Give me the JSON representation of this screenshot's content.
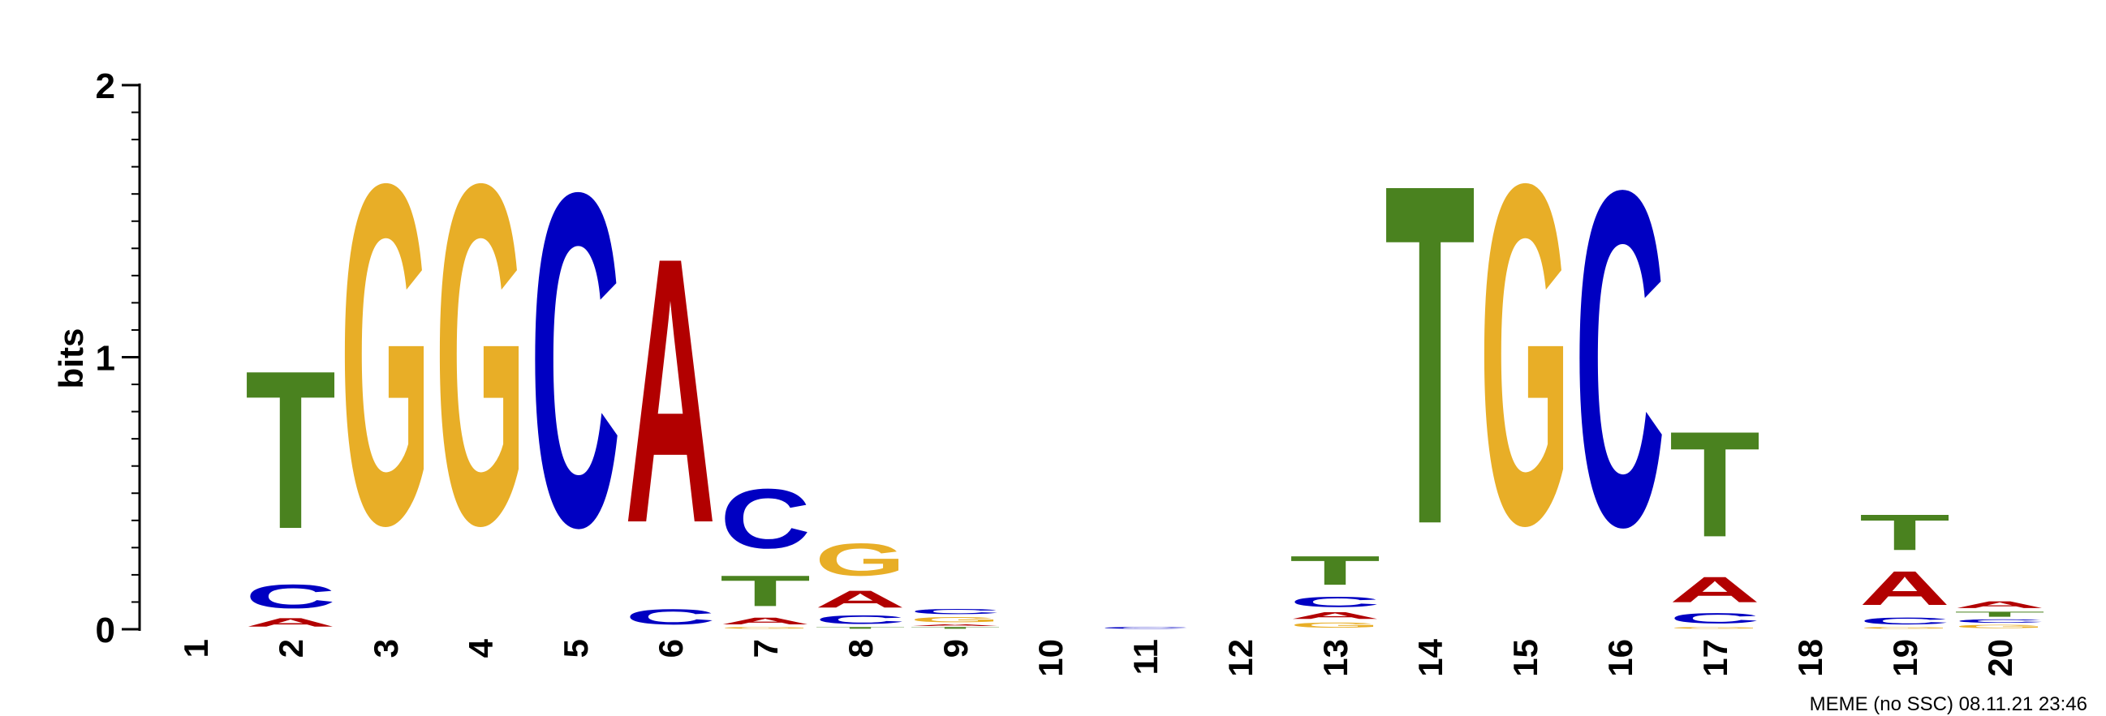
{
  "chart_data": {
    "type": "sequence-logo",
    "ylabel": "bits",
    "ylim": [
      0,
      2
    ],
    "yticks": [
      "0",
      "1",
      "2"
    ],
    "positions": [
      "1",
      "2",
      "3",
      "4",
      "5",
      "6",
      "7",
      "8",
      "9",
      "10",
      "11",
      "12",
      "13",
      "14",
      "15",
      "16",
      "17",
      "18",
      "19",
      "20"
    ],
    "letter_colors": {
      "A": "#b20000",
      "C": "#0000c2",
      "G": "#e8ae27",
      "T": "#4a821f"
    },
    "stacks": [
      [],
      [
        {
          "letter": "A",
          "height": 0.05
        },
        {
          "letter": "C",
          "height": 0.14
        },
        {
          "letter": "T",
          "height": 0.93
        }
      ],
      [
        {
          "letter": "G",
          "height": 2.0
        }
      ],
      [
        {
          "letter": "G",
          "height": 2.0
        }
      ],
      [
        {
          "letter": "C",
          "height": 1.96
        }
      ],
      [
        {
          "letter": "C",
          "height": 0.09
        },
        {
          "letter": "A",
          "height": 1.56
        }
      ],
      [
        {
          "letter": "G",
          "height": 0.01
        },
        {
          "letter": "A",
          "height": 0.04
        },
        {
          "letter": "T",
          "height": 0.18
        },
        {
          "letter": "C",
          "height": 0.35
        }
      ],
      [
        {
          "letter": "T",
          "height": 0.01
        },
        {
          "letter": "C",
          "height": 0.05
        },
        {
          "letter": "A",
          "height": 0.1
        },
        {
          "letter": "G",
          "height": 0.19
        }
      ],
      [
        {
          "letter": "T",
          "height": 0.01
        },
        {
          "letter": "A",
          "height": 0.01
        },
        {
          "letter": "G",
          "height": 0.03
        },
        {
          "letter": "C",
          "height": 0.03
        }
      ],
      [],
      [
        {
          "letter": "C",
          "height": 0.01
        }
      ],
      [],
      [
        {
          "letter": "G",
          "height": 0.03
        },
        {
          "letter": "A",
          "height": 0.04
        },
        {
          "letter": "C",
          "height": 0.06
        },
        {
          "letter": "T",
          "height": 0.17
        }
      ],
      [
        {
          "letter": "T",
          "height": 2.0
        }
      ],
      [
        {
          "letter": "G",
          "height": 2.0
        }
      ],
      [
        {
          "letter": "C",
          "height": 1.97
        }
      ],
      [
        {
          "letter": "G",
          "height": 0.01
        },
        {
          "letter": "C",
          "height": 0.06
        },
        {
          "letter": "A",
          "height": 0.15
        },
        {
          "letter": "T",
          "height": 0.62
        }
      ],
      [],
      [
        {
          "letter": "G",
          "height": 0.01
        },
        {
          "letter": "C",
          "height": 0.04
        },
        {
          "letter": "A",
          "height": 0.2
        },
        {
          "letter": "T",
          "height": 0.21
        }
      ],
      [
        {
          "letter": "G",
          "height": 0.02
        },
        {
          "letter": "C",
          "height": 0.02
        },
        {
          "letter": "T",
          "height": 0.03
        },
        {
          "letter": "A",
          "height": 0.04
        }
      ]
    ]
  },
  "footer": {
    "stamp": "MEME (no SSC) 08.11.21 23:46"
  }
}
